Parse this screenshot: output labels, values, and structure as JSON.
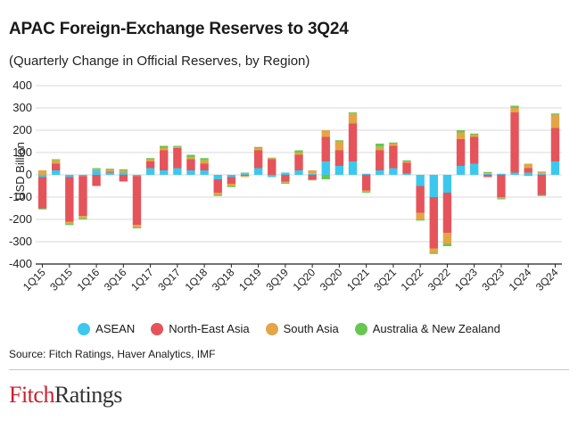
{
  "title": "APAC Foreign-Exchange Reserves to 3Q24",
  "subtitle": "(Quarterly Change in Official Reserves, by Region)",
  "source": "Source: Fitch Ratings, Haver Analytics, IMF",
  "logo": {
    "part1": "Fitch",
    "part2": "Ratings"
  },
  "colors": {
    "ASEAN": "#3cc8ee",
    "North-East Asia": "#e5545a",
    "South Asia": "#e3a547",
    "Australia & New Zealand": "#69c653"
  },
  "chart_data": {
    "type": "bar",
    "stacked": true,
    "ylabel": "USD Billion",
    "ylim": [
      -400,
      400
    ],
    "yticks": [
      400,
      300,
      200,
      100,
      0,
      -100,
      -200,
      -300,
      -400
    ],
    "grid": true,
    "legend_position": "bottom",
    "categories": [
      "1Q15",
      "2Q15",
      "3Q15",
      "4Q15",
      "1Q16",
      "2Q16",
      "3Q16",
      "4Q16",
      "1Q17",
      "2Q17",
      "3Q17",
      "4Q17",
      "1Q18",
      "2Q18",
      "3Q18",
      "4Q18",
      "1Q19",
      "2Q19",
      "3Q19",
      "4Q19",
      "1Q20",
      "2Q20",
      "3Q20",
      "4Q20",
      "1Q21",
      "2Q21",
      "3Q21",
      "4Q21",
      "1Q22",
      "2Q22",
      "3Q22",
      "4Q22",
      "1Q23",
      "2Q23",
      "3Q23",
      "4Q23",
      "1Q24",
      "2Q24",
      "3Q24"
    ],
    "tick_labels": [
      "1Q15",
      "3Q15",
      "1Q16",
      "3Q16",
      "1Q17",
      "3Q17",
      "1Q18",
      "3Q18",
      "1Q19",
      "3Q19",
      "1Q20",
      "3Q20",
      "1Q21",
      "3Q21",
      "1Q22",
      "3Q22",
      "1Q23",
      "3Q23",
      "1Q24",
      "3Q24"
    ],
    "series": [
      {
        "name": "ASEAN",
        "values": [
          -10,
          20,
          -10,
          -5,
          20,
          10,
          10,
          -5,
          30,
          20,
          30,
          20,
          20,
          -20,
          -10,
          5,
          30,
          -10,
          10,
          20,
          5,
          60,
          40,
          60,
          5,
          20,
          30,
          5,
          -50,
          -100,
          -80,
          40,
          50,
          5,
          5,
          10,
          10,
          5,
          60
        ]
      },
      {
        "name": "North-East Asia",
        "values": [
          -140,
          30,
          -200,
          -180,
          -50,
          5,
          -30,
          -220,
          30,
          90,
          90,
          50,
          30,
          -60,
          -30,
          -5,
          80,
          70,
          -30,
          70,
          -20,
          110,
          70,
          170,
          -70,
          90,
          100,
          50,
          -120,
          -230,
          -180,
          120,
          120,
          -10,
          -100,
          270,
          20,
          -90,
          150
        ]
      },
      {
        "name": "South Asia",
        "values": [
          20,
          15,
          -10,
          -10,
          5,
          10,
          10,
          -10,
          10,
          10,
          5,
          10,
          15,
          -10,
          -10,
          -5,
          10,
          5,
          -5,
          10,
          15,
          30,
          40,
          45,
          -5,
          15,
          10,
          5,
          -30,
          -20,
          -50,
          30,
          10,
          5,
          -5,
          20,
          20,
          10,
          60
        ]
      },
      {
        "name": "Australia & New Zealand",
        "values": [
          -5,
          5,
          -5,
          -5,
          5,
          3,
          5,
          -5,
          5,
          10,
          5,
          10,
          10,
          -5,
          -5,
          5,
          5,
          2,
          -5,
          10,
          -5,
          -20,
          5,
          5,
          -5,
          15,
          5,
          5,
          -5,
          -5,
          -10,
          10,
          5,
          3,
          -5,
          10,
          -5,
          -5,
          5
        ]
      }
    ]
  }
}
